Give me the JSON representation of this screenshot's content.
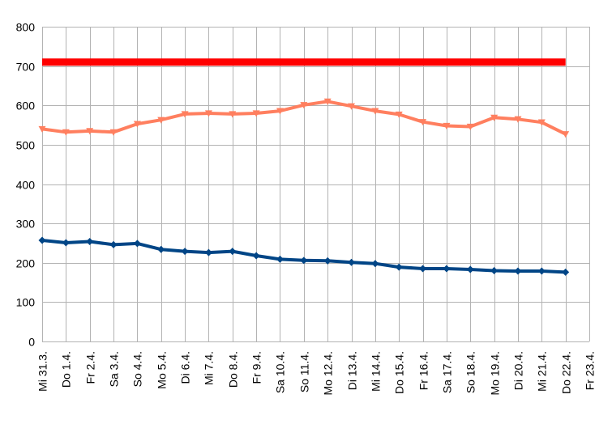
{
  "chart_data": {
    "type": "line",
    "title": "",
    "xlabel": "",
    "ylabel": "",
    "ylim": [
      0,
      800
    ],
    "yticks": [
      0,
      100,
      200,
      300,
      400,
      500,
      600,
      700,
      800
    ],
    "grid": true,
    "legend": "none",
    "categories": [
      "Mi 31.3.",
      "Do 1.4.",
      "Fr 2.4.",
      "Sa 3.4.",
      "So 4.4.",
      "Mo 5.4.",
      "Di 6.4.",
      "Mi 7.4.",
      "Do 8.4.",
      "Fr 9.4.",
      "Sa 10.4.",
      "So 11.4.",
      "Mo 12.4.",
      "Di 13.4.",
      "Mi 14.4.",
      "Do 15.4.",
      "Fr 16.4.",
      "Sa 17.4.",
      "So 18.4.",
      "Mo 19.4.",
      "Di 20.4.",
      "Mi 21.4.",
      "Do 22.4.",
      "Fr 23.4."
    ],
    "series": [
      {
        "color": "#ff0000",
        "marker": "none",
        "values": [
          710,
          710,
          710,
          710,
          710,
          710,
          710,
          710,
          710,
          710,
          710,
          710,
          710,
          710,
          710,
          710,
          710,
          710,
          710,
          710,
          710,
          710,
          710,
          null
        ]
      },
      {
        "color": "#ff7f5f",
        "marker": "triangle-down",
        "values": [
          540,
          532,
          535,
          532,
          553,
          563,
          578,
          580,
          578,
          580,
          586,
          601,
          610,
          598,
          586,
          577,
          558,
          548,
          546,
          569,
          565,
          557,
          527,
          null
        ]
      },
      {
        "color": "#004586",
        "marker": "diamond",
        "values": [
          257,
          251,
          254,
          246,
          249,
          234,
          229,
          226,
          229,
          218,
          209,
          206,
          205,
          201,
          198,
          189,
          185,
          185,
          183,
          180,
          179,
          179,
          176,
          null
        ]
      }
    ]
  }
}
